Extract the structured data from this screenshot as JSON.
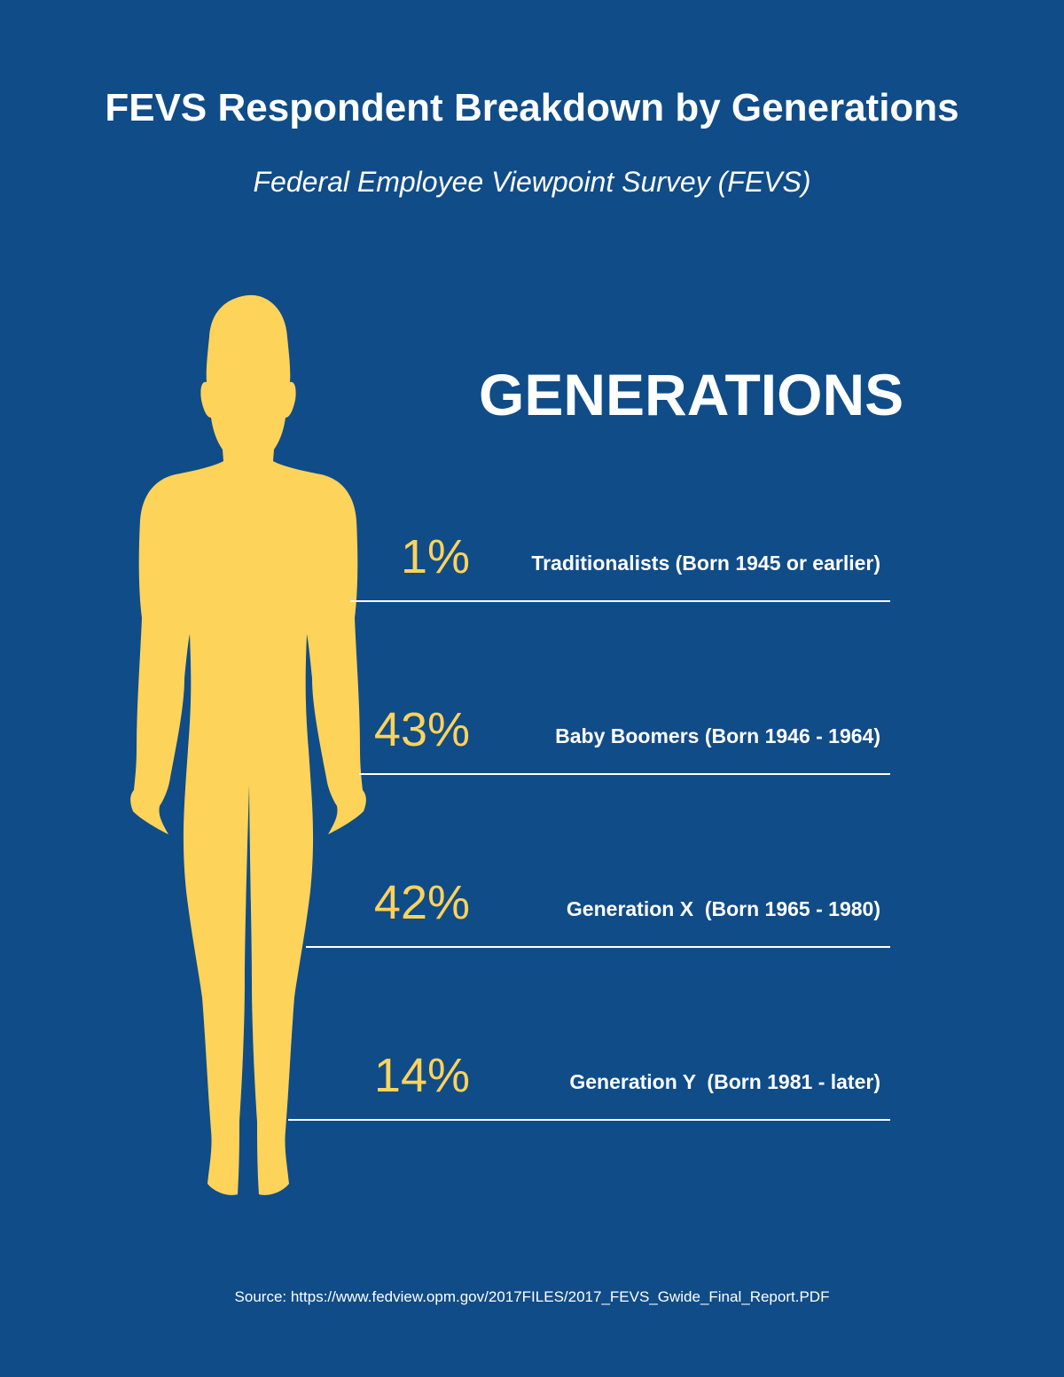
{
  "header": {
    "title": "FEVS Respondent Breakdown by Generations",
    "subtitle": "Federal Employee Viewpoint Survey (FEVS)"
  },
  "icons": {
    "figure": "person-silhouette-icon"
  },
  "colors": {
    "background": "#104c88",
    "accent": "#fdd35a",
    "text": "#ffffff",
    "divider": "#ffffff"
  },
  "chart_data": {
    "type": "table",
    "title": "GENERATIONS",
    "categories": [
      "Traditionalists (Born 1945 or earlier)",
      "Baby Boomers (Born 1946 - 1964)",
      "Generation X  (Born 1965 - 1980)",
      "Generation Y  (Born 1981 - later)"
    ],
    "labels": [
      "1%",
      "43%",
      "42%",
      "14%"
    ],
    "values": [
      1,
      43,
      42,
      14
    ],
    "unit": "%"
  },
  "footer": {
    "source": "Source: https://www.fedview.opm.gov/2017FILES/2017_FEVS_Gwide_Final_Report.PDF"
  }
}
